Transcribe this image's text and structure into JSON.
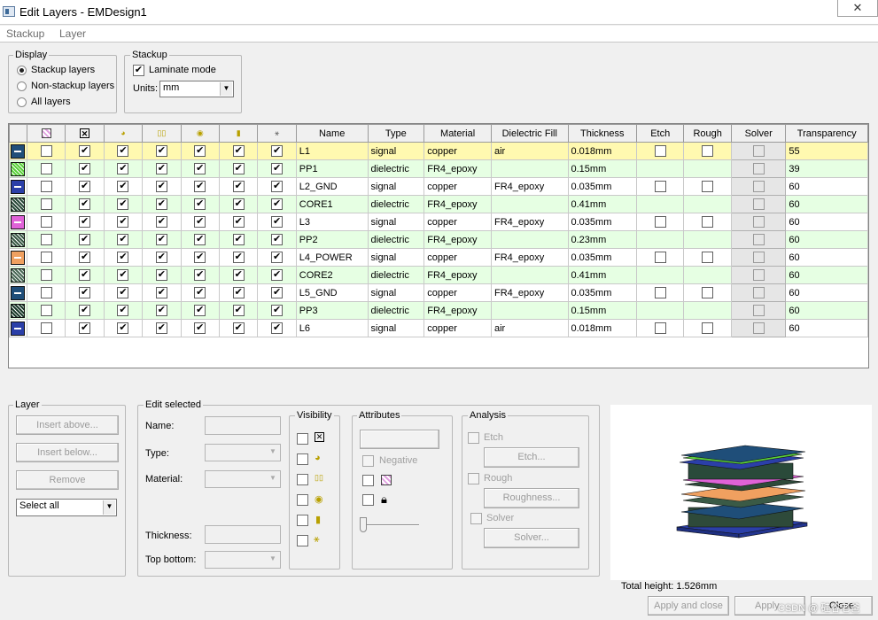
{
  "window": {
    "title": "Edit Layers - EMDesign1",
    "close_glyph": "✕"
  },
  "menu": [
    "Stackup",
    "Layer"
  ],
  "display": {
    "legend": "Display",
    "options": [
      "Stackup layers",
      "Non-stackup layers",
      "All layers"
    ],
    "selected": "Stackup layers"
  },
  "stackup": {
    "legend": "Stackup",
    "laminate_label": "Laminate mode",
    "laminate_checked": true,
    "units_label": "Units:",
    "units_value": "mm"
  },
  "grid": {
    "icon_columns": [
      "pattern-icon",
      "visible-icon",
      "metal-icon",
      "via-icon",
      "circle-icon",
      "fill-icon",
      "mesh-icon"
    ],
    "columns": [
      "Name",
      "Type",
      "Material",
      "Dielectric Fill",
      "Thickness",
      "Etch",
      "Rough",
      "Solver",
      "Transparency"
    ],
    "rows": [
      {
        "color": "#1f4e79",
        "kind": "signal",
        "name": "L1",
        "type": "signal",
        "material": "copper",
        "fill": "air",
        "thickness": "0.018mm",
        "transparency": "55"
      },
      {
        "color": "#5ad13a",
        "kind": "dielectric",
        "name": "PP1",
        "type": "dielectric",
        "material": "FR4_epoxy",
        "fill": "",
        "thickness": "0.15mm",
        "transparency": "39"
      },
      {
        "color": "#2b3fa8",
        "kind": "signal",
        "name": "L2_GND",
        "type": "signal",
        "material": "copper",
        "fill": "FR4_epoxy",
        "thickness": "0.035mm",
        "transparency": "60"
      },
      {
        "color": "#2a4a3a",
        "kind": "dielectric",
        "name": "CORE1",
        "type": "dielectric",
        "material": "FR4_epoxy",
        "fill": "",
        "thickness": "0.41mm",
        "transparency": "60"
      },
      {
        "color": "#e062d8",
        "kind": "signal",
        "name": "L3",
        "type": "signal",
        "material": "copper",
        "fill": "FR4_epoxy",
        "thickness": "0.035mm",
        "transparency": "60"
      },
      {
        "color": "#3a5a46",
        "kind": "dielectric",
        "name": "PP2",
        "type": "dielectric",
        "material": "FR4_epoxy",
        "fill": "",
        "thickness": "0.23mm",
        "transparency": "60"
      },
      {
        "color": "#f0a060",
        "kind": "signal",
        "name": "L4_POWER",
        "type": "signal",
        "material": "copper",
        "fill": "FR4_epoxy",
        "thickness": "0.035mm",
        "transparency": "60"
      },
      {
        "color": "#4a6a56",
        "kind": "dielectric",
        "name": "CORE2",
        "type": "dielectric",
        "material": "FR4_epoxy",
        "fill": "",
        "thickness": "0.41mm",
        "transparency": "60"
      },
      {
        "color": "#1f4e79",
        "kind": "signal",
        "name": "L5_GND",
        "type": "signal",
        "material": "copper",
        "fill": "FR4_epoxy",
        "thickness": "0.035mm",
        "transparency": "60"
      },
      {
        "color": "#1a3a2a",
        "kind": "dielectric",
        "name": "PP3",
        "type": "dielectric",
        "material": "FR4_epoxy",
        "fill": "",
        "thickness": "0.15mm",
        "transparency": "60"
      },
      {
        "color": "#2b3fa8",
        "kind": "signal",
        "name": "L6",
        "type": "signal",
        "material": "copper",
        "fill": "air",
        "thickness": "0.018mm",
        "transparency": "60"
      }
    ]
  },
  "layer_panel": {
    "legend": "Layer",
    "insert_above": "Insert above...",
    "insert_below": "Insert below...",
    "remove": "Remove",
    "select_value": "Select all"
  },
  "edit_selected": {
    "legend": "Edit selected",
    "name_label": "Name:",
    "type_label": "Type:",
    "material_label": "Material:",
    "thickness_label": "Thickness:",
    "top_bottom_label": "Top bottom:"
  },
  "visibility": {
    "legend": "Visibility",
    "icons": [
      "visible-icon",
      "metal-icon",
      "via-icon",
      "circle-icon",
      "fill-icon",
      "mesh-icon"
    ]
  },
  "attributes": {
    "legend": "Attributes",
    "negative_label": "Negative"
  },
  "analysis": {
    "legend": "Analysis",
    "etch_label": "Etch",
    "etch_button": "Etch...",
    "rough_label": "Rough",
    "rough_button": "Roughness...",
    "solver_label": "Solver",
    "solver_button": "Solver..."
  },
  "footer": {
    "total_height": "Total height: 1.526mm",
    "apply_close": "Apply and close",
    "apply": "Apply",
    "close": "Close",
    "watermark": "CSDN @ 硅谷老爸"
  }
}
